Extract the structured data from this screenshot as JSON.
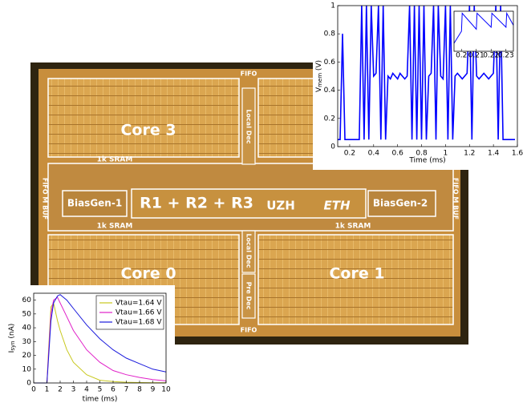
{
  "chip": {
    "labels": [
      "FIFO",
      "Core 3",
      "Local Dec",
      "1k SRAM",
      "1k SRAM",
      "FIFO M BUF",
      "BiasGen-1",
      "R1 + R2 + R3",
      "UZH",
      "ETH",
      "BiasGen-2",
      "FIFO M BUF",
      "1k SRAM",
      "1k SRAM",
      "Local Dec",
      "Core 0",
      "Core 1",
      "Pre Dec",
      "FIFO"
    ]
  },
  "chart_data": [
    {
      "type": "line",
      "ylabel": {
        "main": "V",
        "sub": "mem",
        "rest": " (V)"
      },
      "xlabel": "Time (ms)",
      "xlim": [
        0.1,
        1.6
      ],
      "ylim": [
        0,
        1
      ],
      "xticks": [
        0.2,
        0.4,
        0.6,
        0.8,
        1,
        1.2,
        1.4,
        1.6
      ],
      "yticks": [
        0,
        0.2,
        0.4,
        0.6,
        0.8,
        1
      ],
      "series": [
        {
          "color": "#0000ff",
          "x": [
            0.1,
            0.12,
            0.14,
            0.16,
            0.18,
            0.2,
            0.22,
            0.24,
            0.26,
            0.28,
            0.3,
            0.32,
            0.34,
            0.36,
            0.38,
            0.4,
            0.42,
            0.44,
            0.46,
            0.48,
            0.5,
            0.52,
            0.54,
            0.56,
            0.58,
            0.6,
            0.62,
            0.64,
            0.66,
            0.68,
            0.7,
            0.72,
            0.74,
            0.76,
            0.78,
            0.8,
            0.82,
            0.84,
            0.86,
            0.88,
            0.9,
            0.92,
            0.94,
            0.96,
            0.98,
            1,
            1.02,
            1.04,
            1.06,
            1.08,
            1.1,
            1.12,
            1.14,
            1.16,
            1.18,
            1.2,
            1.22,
            1.24,
            1.26,
            1.28,
            1.3,
            1.32,
            1.34,
            1.36,
            1.38,
            1.4,
            1.42,
            1.44,
            1.46,
            1.48,
            1.5,
            1.52,
            1.54,
            1.56,
            1.58
          ],
          "values": [
            0.05,
            0.05,
            0.8,
            0.05,
            0.05,
            0.05,
            0.05,
            0.05,
            0.05,
            0.05,
            1,
            0.05,
            1,
            0.05,
            1,
            0.5,
            0.52,
            1,
            0.05,
            1,
            0.05,
            0.5,
            0.48,
            0.52,
            0.5,
            0.48,
            0.52,
            0.5,
            0.48,
            0.5,
            1,
            0.05,
            1,
            0.05,
            1,
            0.05,
            1,
            0.05,
            0.5,
            0.52,
            1,
            0.05,
            1,
            0.5,
            0.48,
            1,
            0.05,
            1,
            0.05,
            0.5,
            0.52,
            0.5,
            0.48,
            0.5,
            0.52,
            1,
            0.05,
            1,
            0.5,
            0.48,
            0.5,
            0.52,
            0.5,
            0.48,
            0.5,
            0.52,
            1,
            0.05,
            1,
            0.05,
            0.05,
            0.05,
            0.05,
            0.05,
            0.05
          ]
        }
      ]
    },
    {
      "type": "line",
      "xlim": [
        0.195,
        0.235
      ],
      "ylim": [
        0,
        1
      ],
      "xticks": [
        0.2,
        0.21,
        0.22,
        0.23
      ],
      "yticks": [],
      "series": [
        {
          "color": "#0000ff",
          "x": [
            0.195,
            0.2,
            0.2005,
            0.21,
            0.2105,
            0.22,
            0.2205,
            0.23,
            0.2305,
            0.235
          ],
          "values": [
            0.2,
            0.5,
            0.95,
            0.55,
            0.95,
            0.6,
            0.95,
            0.6,
            0.95,
            0.65
          ]
        }
      ]
    },
    {
      "type": "line",
      "ylabel": {
        "main": "I",
        "sub": "syn",
        "rest": " (nA)"
      },
      "xlabel": "time (ms)",
      "xlim": [
        0,
        10
      ],
      "ylim": [
        0,
        65
      ],
      "xticks": [
        0,
        1,
        2,
        3,
        4,
        5,
        6,
        7,
        8,
        9,
        10
      ],
      "yticks": [
        0,
        10,
        20,
        30,
        40,
        50,
        60
      ],
      "legend": "upper right",
      "series": [
        {
          "name": "Vtau=1.64 V",
          "color": "#c8c81e",
          "x": [
            0,
            1,
            1.1,
            1.3,
            1.5,
            1.8,
            2,
            2.5,
            3,
            4,
            5,
            6,
            7,
            8,
            9,
            10
          ],
          "values": [
            0,
            0,
            20,
            55,
            58,
            45,
            38,
            24,
            15,
            6,
            2,
            1,
            0.5,
            0.3,
            0.2,
            0.1
          ]
        },
        {
          "name": "Vtau=1.66 V",
          "color": "#e020c8",
          "x": [
            0,
            1,
            1.1,
            1.3,
            1.5,
            1.8,
            2,
            2.5,
            3,
            4,
            5,
            6,
            7,
            8,
            9,
            10
          ],
          "values": [
            0,
            0,
            18,
            50,
            60,
            62,
            58,
            48,
            38,
            24,
            15,
            9,
            6,
            4,
            2.5,
            1.5
          ]
        },
        {
          "name": "Vtau=1.68 V",
          "color": "#1a1adc",
          "x": [
            0,
            1,
            1.1,
            1.3,
            1.5,
            1.8,
            2,
            2.5,
            3,
            4,
            5,
            6,
            7,
            8,
            9,
            10
          ],
          "values": [
            0,
            0,
            15,
            45,
            58,
            63,
            64,
            60,
            54,
            42,
            32,
            24,
            18,
            14,
            10,
            8
          ]
        }
      ]
    }
  ]
}
